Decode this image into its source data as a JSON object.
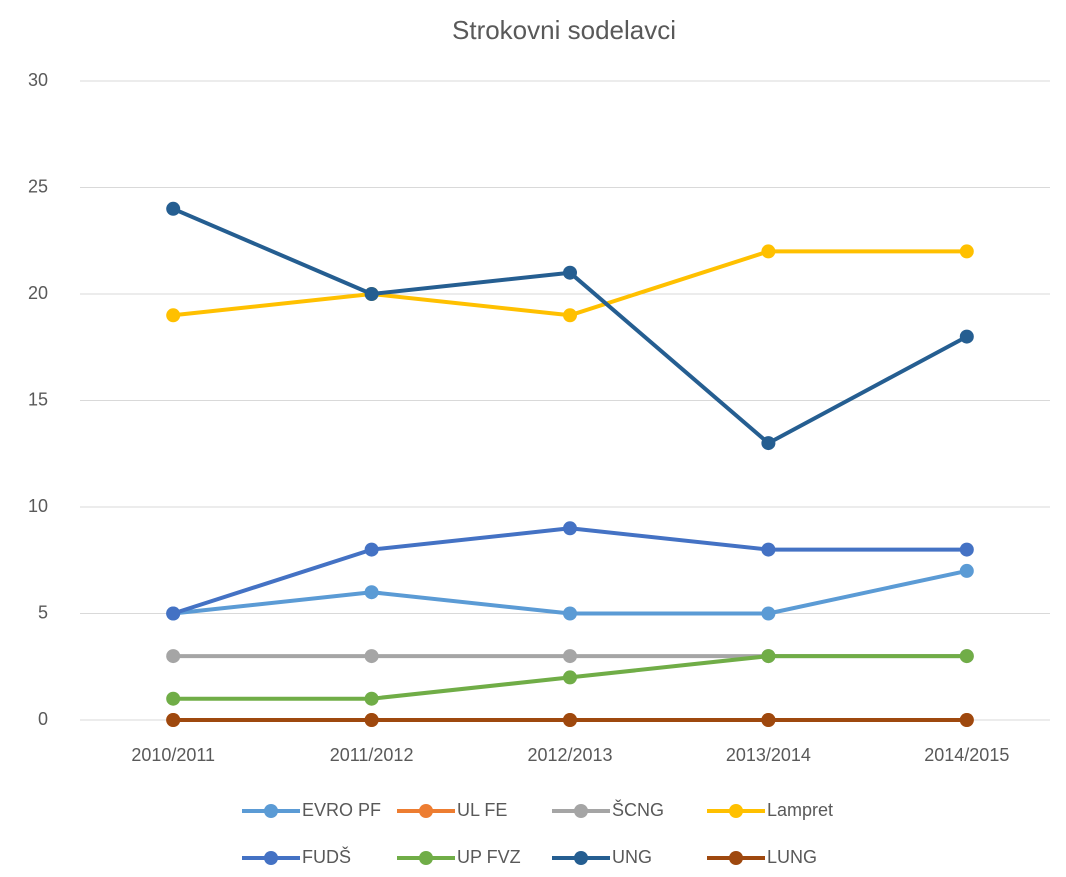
{
  "chart_data": {
    "type": "line",
    "title": "Strokovni sodelavci",
    "categories": [
      "2010/2011",
      "2011/2012",
      "2012/2013",
      "2013/2014",
      "2014/2015"
    ],
    "series": [
      {
        "name": "EVRO PF",
        "color": "#5b9bd5",
        "values": [
          5,
          6,
          5,
          5,
          7
        ]
      },
      {
        "name": "UL FE",
        "color": "#ed7d31",
        "values": [
          0,
          0,
          0,
          0,
          0
        ]
      },
      {
        "name": "ŠCNG",
        "color": "#a5a5a5",
        "values": [
          3,
          3,
          3,
          3,
          3
        ]
      },
      {
        "name": "Lampret",
        "color": "#ffc000",
        "values": [
          19,
          20,
          19,
          22,
          22
        ]
      },
      {
        "name": "FUDŠ",
        "color": "#4472c4",
        "values": [
          5,
          8,
          9,
          8,
          8
        ]
      },
      {
        "name": "UP FVZ",
        "color": "#70ad47",
        "values": [
          1,
          1,
          2,
          3,
          3
        ]
      },
      {
        "name": "UNG",
        "color": "#255e91",
        "values": [
          24,
          20,
          21,
          13,
          18
        ]
      },
      {
        "name": "LUNG",
        "color": "#9e480e",
        "values": [
          0,
          0,
          0,
          0,
          0
        ]
      }
    ],
    "ylim": [
      0,
      30
    ],
    "yticks": [
      0,
      5,
      10,
      15,
      20,
      25,
      30
    ],
    "grid": true,
    "legend": "bottom"
  }
}
